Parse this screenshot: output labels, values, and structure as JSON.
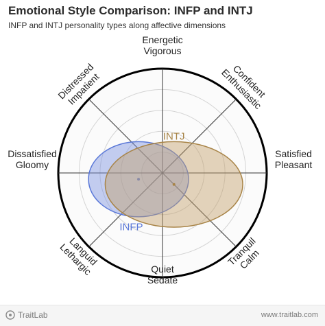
{
  "header": {
    "title": "Emotional Style Comparison: INFP and INTJ",
    "subtitle": "INFP and INTJ personality types along affective dimensions"
  },
  "footer": {
    "brand": "TraitLab",
    "brand_icon": "traitlab-logo-icon",
    "url": "www.traitlab.com"
  },
  "chart_data": {
    "type": "radial-ellipse",
    "x_range": [
      -1,
      1
    ],
    "y_range": [
      -1,
      1
    ],
    "rings": 5,
    "axis_labels": [
      {
        "key": "top",
        "lines": [
          "Energetic",
          "Vigorous"
        ]
      },
      {
        "key": "top-right",
        "lines": [
          "Confident",
          "Enthusiastic"
        ]
      },
      {
        "key": "right",
        "lines": [
          "Satisfied",
          "Pleasant"
        ]
      },
      {
        "key": "bottom-right",
        "lines": [
          "Tranquil",
          "Calm"
        ]
      },
      {
        "key": "bottom",
        "lines": [
          "Quiet",
          "Sedate"
        ]
      },
      {
        "key": "bottom-left",
        "lines": [
          "Languid",
          "Lethargic"
        ]
      },
      {
        "key": "left",
        "lines": [
          "Dissatisfied",
          "Gloomy"
        ]
      },
      {
        "key": "top-left",
        "lines": [
          "Distressed",
          "Impatient"
        ]
      }
    ],
    "series": [
      {
        "name": "INFP",
        "center": [
          -0.23,
          -0.06
        ],
        "radii": [
          0.48,
          0.36
        ],
        "color": "#5a78d8",
        "fill": "#7d93e0",
        "label_pos": [
          -0.3,
          -0.55
        ]
      },
      {
        "name": "INTJ",
        "center": [
          0.11,
          -0.11
        ],
        "radii": [
          0.66,
          0.41
        ],
        "color": "#a88447",
        "fill": "#c4a06a",
        "label_pos": [
          0.11,
          0.32
        ]
      }
    ]
  }
}
